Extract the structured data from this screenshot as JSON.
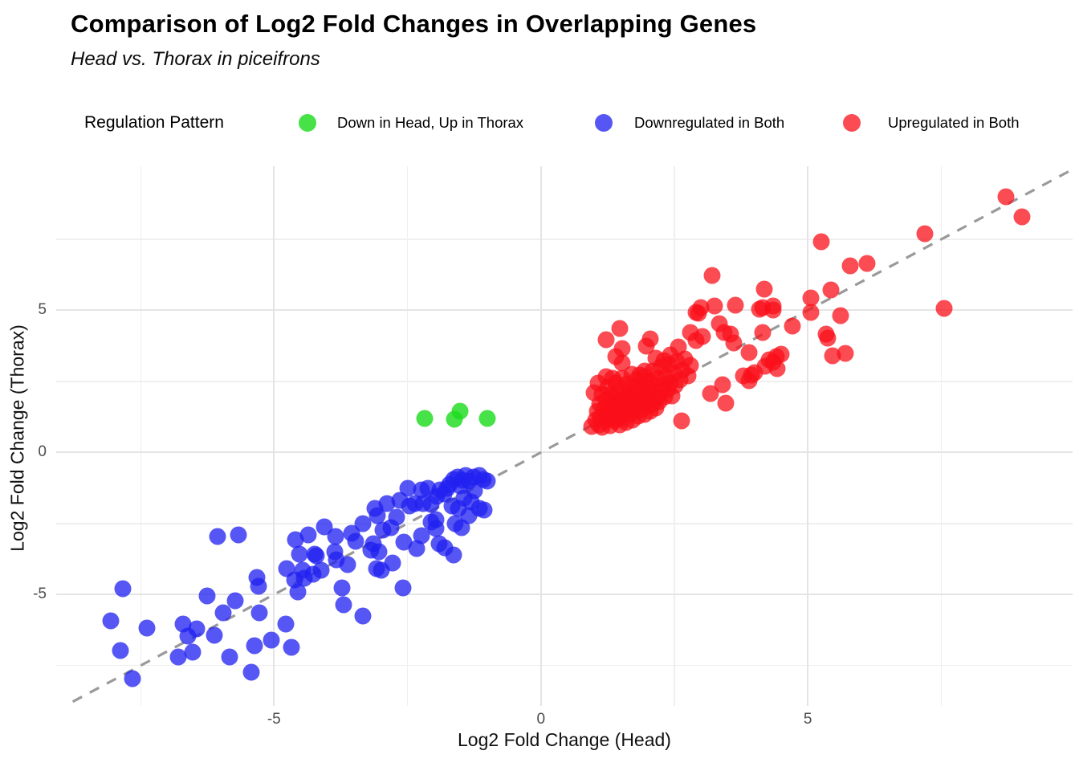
{
  "header": {
    "title": "Comparison of Log2 Fold Changes in Overlapping Genes",
    "subtitle": "Head vs. Thorax in piceifrons"
  },
  "legend": {
    "title": "Regulation Pattern"
  },
  "chart_data": {
    "type": "scatter",
    "title": "Comparison of Log2 Fold Changes in Overlapping Genes",
    "subtitle": "Head vs. Thorax in piceifrons",
    "xlabel": "Log2 Fold Change (Head)",
    "ylabel": "Log2 Fold Change (Thorax)",
    "xlim": [
      -9.08,
      9.96
    ],
    "ylim": [
      -8.92,
      10.07
    ],
    "x_ticks": [
      -5,
      0,
      5
    ],
    "y_ticks": [
      5,
      0,
      -5
    ],
    "x_minor_ticks": [
      -7.5,
      -2.5,
      2.5,
      7.5
    ],
    "y_minor_ticks": [
      -7.5,
      -2.5,
      2.5,
      7.5
    ],
    "grid": "major+minor, light gray on white",
    "legend_position": "top",
    "identity_line": {
      "equation": "y = x",
      "style": "dashed",
      "color": "#9a9a9a"
    },
    "series": [
      {
        "name": "Down in Head, Up in Thorax",
        "color": "#1edc1e",
        "alpha": 0.82,
        "points": [
          [
            -2.17,
            1.19
          ],
          [
            -1.62,
            1.17
          ],
          [
            -1.52,
            1.45
          ],
          [
            -1.01,
            1.19
          ]
        ]
      },
      {
        "name": "Downregulated in Both",
        "color": "#2121f0",
        "alpha": 0.76,
        "points": [
          [
            -8.06,
            -5.92
          ],
          [
            -7.88,
            -6.98
          ],
          [
            -7.83,
            -4.79
          ],
          [
            -7.65,
            -7.96
          ],
          [
            -7.38,
            -6.18
          ],
          [
            -6.8,
            -7.19
          ],
          [
            -6.71,
            -6.05
          ],
          [
            -6.62,
            -6.45
          ],
          [
            -6.53,
            -7.03
          ],
          [
            -6.45,
            -6.2
          ],
          [
            -6.26,
            -5.06
          ],
          [
            -6.12,
            -6.42
          ],
          [
            -6.06,
            -2.95
          ],
          [
            -5.95,
            -5.65
          ],
          [
            -5.83,
            -7.19
          ],
          [
            -5.73,
            -5.23
          ],
          [
            -5.67,
            -2.9
          ],
          [
            -5.43,
            -7.73
          ],
          [
            -5.37,
            -6.79
          ],
          [
            -5.32,
            -4.4
          ],
          [
            -5.29,
            -4.72
          ],
          [
            -5.28,
            -5.63
          ],
          [
            -5.05,
            -6.6
          ],
          [
            -4.78,
            -6.05
          ],
          [
            -4.68,
            -6.85
          ],
          [
            -4.77,
            -4.09
          ],
          [
            -4.62,
            -4.49
          ],
          [
            -4.56,
            -4.91
          ],
          [
            -4.47,
            -4.15
          ],
          [
            -4.44,
            -4.43
          ],
          [
            -4.27,
            -4.29
          ],
          [
            -4.6,
            -3.07
          ],
          [
            -4.36,
            -2.9
          ],
          [
            -4.53,
            -3.58
          ],
          [
            -4.23,
            -3.58
          ],
          [
            -4.2,
            -3.64
          ],
          [
            -4.12,
            -4.15
          ],
          [
            -4.05,
            -2.62
          ],
          [
            -3.85,
            -2.95
          ],
          [
            -3.86,
            -3.49
          ],
          [
            -3.83,
            -3.78
          ],
          [
            -3.62,
            -3.95
          ],
          [
            -3.73,
            -4.77
          ],
          [
            -3.7,
            -5.35
          ],
          [
            -3.34,
            -5.75
          ],
          [
            -3.55,
            -2.85
          ],
          [
            -3.47,
            -3.13
          ],
          [
            -3.34,
            -2.5
          ],
          [
            -3.19,
            -3.44
          ],
          [
            -3.14,
            -3.21
          ],
          [
            -3.11,
            -1.96
          ],
          [
            -3.08,
            -4.08
          ],
          [
            -3.07,
            -2.22
          ],
          [
            -3.04,
            -3.49
          ],
          [
            -2.99,
            -4.15
          ],
          [
            -2.96,
            -2.73
          ],
          [
            -2.89,
            -1.79
          ],
          [
            -2.81,
            -2.64
          ],
          [
            -2.78,
            -3.9
          ],
          [
            -2.7,
            -2.28
          ],
          [
            -2.65,
            -1.68
          ],
          [
            -2.59,
            -4.76
          ],
          [
            -2.57,
            -3.15
          ],
          [
            -2.5,
            -1.25
          ],
          [
            -2.47,
            -1.88
          ],
          [
            -2.36,
            -1.79
          ],
          [
            -2.32,
            -3.38
          ],
          [
            -2.24,
            -1.31
          ],
          [
            -2.23,
            -2.93
          ],
          [
            -2.2,
            -1.79
          ],
          [
            -2.12,
            -1.25
          ],
          [
            -2.06,
            -2.44
          ],
          [
            -2.05,
            -1.82
          ],
          [
            -1.97,
            -2.36
          ],
          [
            -1.97,
            -2.67
          ],
          [
            -1.95,
            -1.55
          ],
          [
            -1.91,
            -3.21
          ],
          [
            -1.89,
            -1.31
          ],
          [
            -1.82,
            -1.45
          ],
          [
            -1.8,
            -3.35
          ],
          [
            -1.75,
            -1.25
          ],
          [
            -1.71,
            -1.12
          ],
          [
            -1.67,
            -1.88
          ],
          [
            -1.64,
            -0.94
          ],
          [
            -1.64,
            -3.62
          ],
          [
            -1.61,
            -2.5
          ],
          [
            -1.56,
            -0.88
          ],
          [
            -1.55,
            -1.96
          ],
          [
            -1.52,
            -1.18
          ],
          [
            -1.49,
            -2.64
          ],
          [
            -1.47,
            -0.97
          ],
          [
            -1.44,
            -1.59
          ],
          [
            -1.41,
            -0.82
          ],
          [
            -1.35,
            -1.02
          ],
          [
            -1.35,
            -2.22
          ],
          [
            -1.31,
            -1.73
          ],
          [
            -1.26,
            -0.88
          ],
          [
            -1.24,
            -1.35
          ],
          [
            -1.16,
            -0.82
          ],
          [
            -1.16,
            -1.96
          ],
          [
            -1.08,
            -0.94
          ],
          [
            -1.07,
            -2.02
          ],
          [
            -1.01,
            -1.02
          ]
        ]
      },
      {
        "name": "Upregulated in Both",
        "color": "#fa0f19",
        "alpha": 0.75,
        "points": [
          [
            0.95,
            0.92
          ],
          [
            1.02,
            1.15
          ],
          [
            1.05,
            1.45
          ],
          [
            1.08,
            0.98
          ],
          [
            1.1,
            1.7
          ],
          [
            1.12,
            1.25
          ],
          [
            1.15,
            2.05
          ],
          [
            1.15,
            0.88
          ],
          [
            1.18,
            1.52
          ],
          [
            1.2,
            1.1
          ],
          [
            1.22,
            1.85
          ],
          [
            1.25,
            1.35
          ],
          [
            1.25,
            2.3
          ],
          [
            1.28,
            1.62
          ],
          [
            1.3,
            0.95
          ],
          [
            1.3,
            2.05
          ],
          [
            1.32,
            1.22
          ],
          [
            1.35,
            1.48
          ],
          [
            1.35,
            1.95
          ],
          [
            1.38,
            1.1
          ],
          [
            1.4,
            1.75
          ],
          [
            1.4,
            2.45
          ],
          [
            1.42,
            1.32
          ],
          [
            1.45,
            1.58
          ],
          [
            1.45,
            2.12
          ],
          [
            1.48,
            0.98
          ],
          [
            1.5,
            1.85
          ],
          [
            1.5,
            1.2
          ],
          [
            1.52,
            2.6
          ],
          [
            1.55,
            1.45
          ],
          [
            1.55,
            2.25
          ],
          [
            1.58,
            1.68
          ],
          [
            1.6,
            1.05
          ],
          [
            1.6,
            1.95
          ],
          [
            1.62,
            2.42
          ],
          [
            1.65,
            1.3
          ],
          [
            1.65,
            2.1
          ],
          [
            1.68,
            1.55
          ],
          [
            1.7,
            1.82
          ],
          [
            1.7,
            2.75
          ],
          [
            1.72,
            1.15
          ],
          [
            1.75,
            2.0
          ],
          [
            1.75,
            1.42
          ],
          [
            1.78,
            2.3
          ],
          [
            1.8,
            1.65
          ],
          [
            1.8,
            2.55
          ],
          [
            1.82,
            1.28
          ],
          [
            1.85,
            1.9
          ],
          [
            1.85,
            2.18
          ],
          [
            1.88,
            1.5
          ],
          [
            1.9,
            2.4
          ],
          [
            1.9,
            1.75
          ],
          [
            1.92,
            2.05
          ],
          [
            1.95,
            1.35
          ],
          [
            1.95,
            2.68
          ],
          [
            1.98,
            1.6
          ],
          [
            2.0,
            2.25
          ],
          [
            2.0,
            1.88
          ],
          [
            2.05,
            2.5
          ],
          [
            2.05,
            1.45
          ],
          [
            2.08,
            2.1
          ],
          [
            2.1,
            1.7
          ],
          [
            2.1,
            2.85
          ],
          [
            2.15,
            2.32
          ],
          [
            2.15,
            1.55
          ],
          [
            2.18,
            1.95
          ],
          [
            2.2,
            2.6
          ],
          [
            2.22,
            1.8
          ],
          [
            2.25,
            2.15
          ],
          [
            2.25,
            3.0
          ],
          [
            2.3,
            2.42
          ],
          [
            2.32,
            1.95
          ],
          [
            2.35,
            2.7
          ],
          [
            2.38,
            2.2
          ],
          [
            2.4,
            3.1
          ],
          [
            2.42,
            2.48
          ],
          [
            2.45,
            2.0
          ],
          [
            2.5,
            2.8
          ],
          [
            2.52,
            2.35
          ],
          [
            2.55,
            3.2
          ],
          [
            2.6,
            2.55
          ],
          [
            2.65,
            2.9
          ],
          [
            2.7,
            3.3
          ],
          [
            2.75,
            2.7
          ],
          [
            2.8,
            3.05
          ],
          [
            0.99,
            2.1
          ],
          [
            1.07,
            2.44
          ],
          [
            1.22,
            2.67
          ],
          [
            1.34,
            2.61
          ],
          [
            1.22,
            3.97
          ],
          [
            1.4,
            3.38
          ],
          [
            1.52,
            3.15
          ],
          [
            1.52,
            3.66
          ],
          [
            1.48,
            4.35
          ],
          [
            1.85,
            2.73
          ],
          [
            1.94,
            2.87
          ],
          [
            1.97,
            3.75
          ],
          [
            2.05,
            4.0
          ],
          [
            2.15,
            3.32
          ],
          [
            2.3,
            3.24
          ],
          [
            2.42,
            3.44
          ],
          [
            2.57,
            3.72
          ],
          [
            2.8,
            4.23
          ],
          [
            2.9,
            3.95
          ],
          [
            2.95,
            4.89
          ],
          [
            3.02,
            4.09
          ],
          [
            2.9,
            4.94
          ],
          [
            3.25,
            5.14
          ],
          [
            3.35,
            4.52
          ],
          [
            3.43,
            4.23
          ],
          [
            3.55,
            4.15
          ],
          [
            3.62,
            3.86
          ],
          [
            3.65,
            5.17
          ],
          [
            3.9,
            3.52
          ],
          [
            4.1,
            5.03
          ],
          [
            4.15,
            4.23
          ],
          [
            4.35,
            5.0
          ],
          [
            4.71,
            4.46
          ],
          [
            5.05,
            4.94
          ],
          [
            5.35,
            4.15
          ],
          [
            2.99,
            5.09
          ],
          [
            2.63,
            1.11
          ],
          [
            3.18,
            2.08
          ],
          [
            3.41,
            2.39
          ],
          [
            3.47,
            1.73
          ],
          [
            3.9,
            2.53
          ],
          [
            3.95,
            2.73
          ],
          [
            4.01,
            2.81
          ],
          [
            4.2,
            3.04
          ],
          [
            4.35,
            3.18
          ],
          [
            4.41,
            3.38
          ],
          [
            4.5,
            3.47
          ],
          [
            4.27,
            3.27
          ],
          [
            3.8,
            2.7
          ],
          [
            4.42,
            2.95
          ],
          [
            3.2,
            6.22
          ],
          [
            4.18,
            5.74
          ],
          [
            4.15,
            5.09
          ],
          [
            4.35,
            5.14
          ],
          [
            5.05,
            5.43
          ],
          [
            5.25,
            7.41
          ],
          [
            5.43,
            5.71
          ],
          [
            5.61,
            4.82
          ],
          [
            5.38,
            4.03
          ],
          [
            5.46,
            3.41
          ],
          [
            5.7,
            3.49
          ],
          [
            5.8,
            6.56
          ],
          [
            6.11,
            6.65
          ],
          [
            7.19,
            7.7
          ],
          [
            7.55,
            5.08
          ],
          [
            8.71,
            9.01
          ],
          [
            9.01,
            8.3
          ]
        ]
      }
    ]
  }
}
